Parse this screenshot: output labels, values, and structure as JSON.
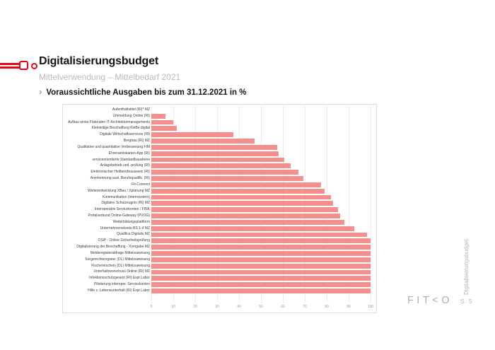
{
  "header": {
    "title": "Digitalisierungsbudget",
    "subtitle": "Mittelverwendung – Mittelbedarf 2021",
    "section_marker": "›",
    "chart_heading": "Voraussichtliche Ausgaben bis zum 31.12.2021 in %"
  },
  "chart_data": {
    "type": "bar",
    "orientation": "horizontal",
    "title": "Voraussichtliche Ausgaben bis zum 31.12.2021 in %",
    "categories": [
      "Aufenthaltstitel (RI)* MZ",
      "Ummeldung Online (RI)",
      "Aufbau eines Föderalen IT-Architekturmanagements",
      "Kleinteilige Beschaffung KleBe.digital",
      "Digitale Wirtschaftsservices (RI)",
      "Bergbau (RI) MZ",
      "Qualitative und quantitative Verbesserung FIM",
      "Ehrenamtskarten-App (RI)",
      "serviceorientierte Standardbausteine",
      "Anlagebetrieb und -prüfung (RI)",
      "Elektronischer Heilberufeausweis (RI)",
      "Anerkennung ausl. Berufsqualifik. (RI)",
      "Fit-Connect",
      "Weiterentwicklung XBau / Xplanung MZ",
      "Kommunikation (intern/extern)",
      "Digitales Schulzeugnis (RI) MZ",
      "Interoperable Servicekonten / FINK",
      "Portalverbund Online-Gateway (PVOG)",
      "Weiterbildungsplattform",
      "Unternehmenskonto BS 1-4 MZ",
      "Qualifica Digitalis MZ",
      "OSiP - Online Sicherheitsprüfung",
      "Digitalisierung der Beschaffung - Xvergabe MZ",
      "Melderegisterabfrage Mittelzuweisung",
      "Sorgerechtsregister (DL) Mittelzuweisung",
      "Fischereischein (DL) Mittelzuweisung",
      "Unterhaltsvorschuss Online (RI) MZ",
      "Infektionsschutzgesetz (RI) Expr.Labor",
      "Pilotierung interoper. Servicekonten",
      "Hilfe z. Lebensunterhalt (RI) Expr.Labor"
    ],
    "values": [
      0,
      6.5,
      10,
      11.5,
      37.5,
      47,
      57.5,
      58,
      60.5,
      63.5,
      67,
      69.5,
      77.5,
      79,
      82,
      83,
      85,
      86,
      88,
      92.5,
      98.5,
      100,
      100,
      100,
      100,
      100,
      100,
      100,
      100,
      100
    ],
    "xlim": [
      0,
      100
    ],
    "x_ticks": [
      0,
      10,
      20,
      30,
      40,
      50,
      60,
      70,
      80,
      90,
      100
    ],
    "grid": true,
    "legend": false,
    "bar_color": "#F48F8D"
  },
  "footer": {
    "logo_text": "FIT<O",
    "page_number": "S. 5",
    "side_label": "Digitalisierungsbudget"
  },
  "colors": {
    "accent_red": "#E30613",
    "bar": "#F48F8D",
    "subtitle_gray": "#B9B9B9",
    "footer_gray": "#A9AEB3"
  }
}
